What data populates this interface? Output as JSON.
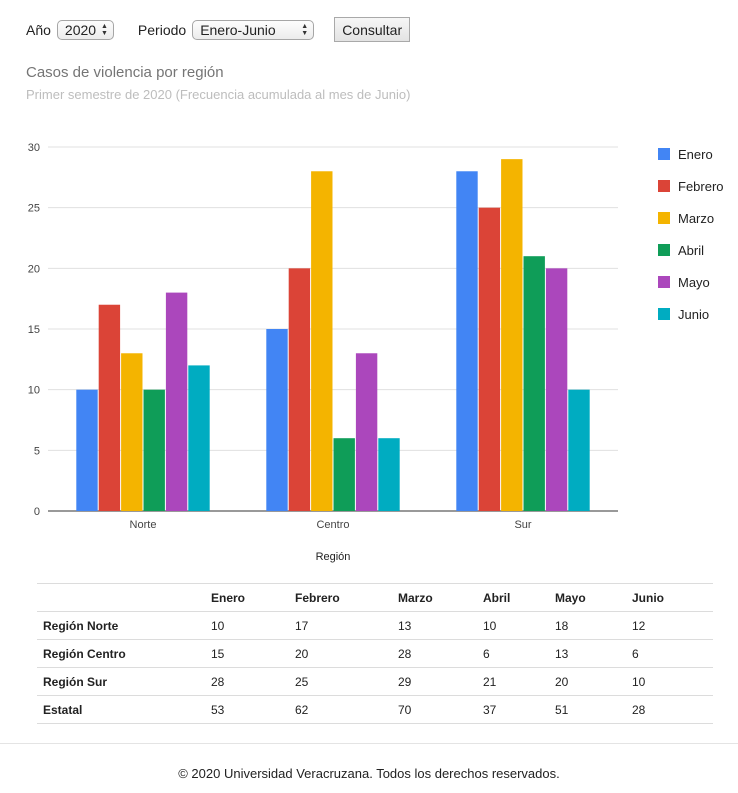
{
  "controls": {
    "year_label": "Año",
    "year_value": "2020",
    "period_label": "Periodo",
    "period_value": "Enero-Junio",
    "submit_label": "Consultar"
  },
  "chart_data": {
    "type": "bar",
    "title": "Casos de violencia por región",
    "subtitle": "Primer semestre de 2020 (Frecuencia acumulada al mes de Junio)",
    "xlabel": "Región",
    "ylabel": "",
    "categories": [
      "Norte",
      "Centro",
      "Sur"
    ],
    "ylim": [
      0,
      30
    ],
    "yticks": [
      "0",
      "5",
      "10",
      "15",
      "20",
      "25",
      "30"
    ],
    "grid": true,
    "legend_position": "right",
    "series": [
      {
        "name": "Enero",
        "color": "#4285f4",
        "values": [
          10,
          15,
          28
        ]
      },
      {
        "name": "Febrero",
        "color": "#db4437",
        "values": [
          17,
          20,
          25
        ]
      },
      {
        "name": "Marzo",
        "color": "#f4b400",
        "values": [
          13,
          28,
          29
        ]
      },
      {
        "name": "Abril",
        "color": "#0f9d58",
        "values": [
          10,
          6,
          21
        ]
      },
      {
        "name": "Mayo",
        "color": "#ab47bc",
        "values": [
          18,
          13,
          20
        ]
      },
      {
        "name": "Junio",
        "color": "#00acc1",
        "values": [
          12,
          6,
          10
        ]
      }
    ]
  },
  "table": {
    "headers": [
      "",
      "Enero",
      "Febrero",
      "Marzo",
      "Abril",
      "Mayo",
      "Junio"
    ],
    "rows": [
      [
        "Región Norte",
        "10",
        "17",
        "13",
        "10",
        "18",
        "12"
      ],
      [
        "Región Centro",
        "15",
        "20",
        "28",
        "6",
        "13",
        "6"
      ],
      [
        "Región Sur",
        "28",
        "25",
        "29",
        "21",
        "20",
        "10"
      ],
      [
        "Estatal",
        "53",
        "62",
        "70",
        "37",
        "51",
        "28"
      ]
    ]
  },
  "footer": {
    "text": "© 2020 Universidad Veracruzana. Todos los derechos reservados."
  }
}
